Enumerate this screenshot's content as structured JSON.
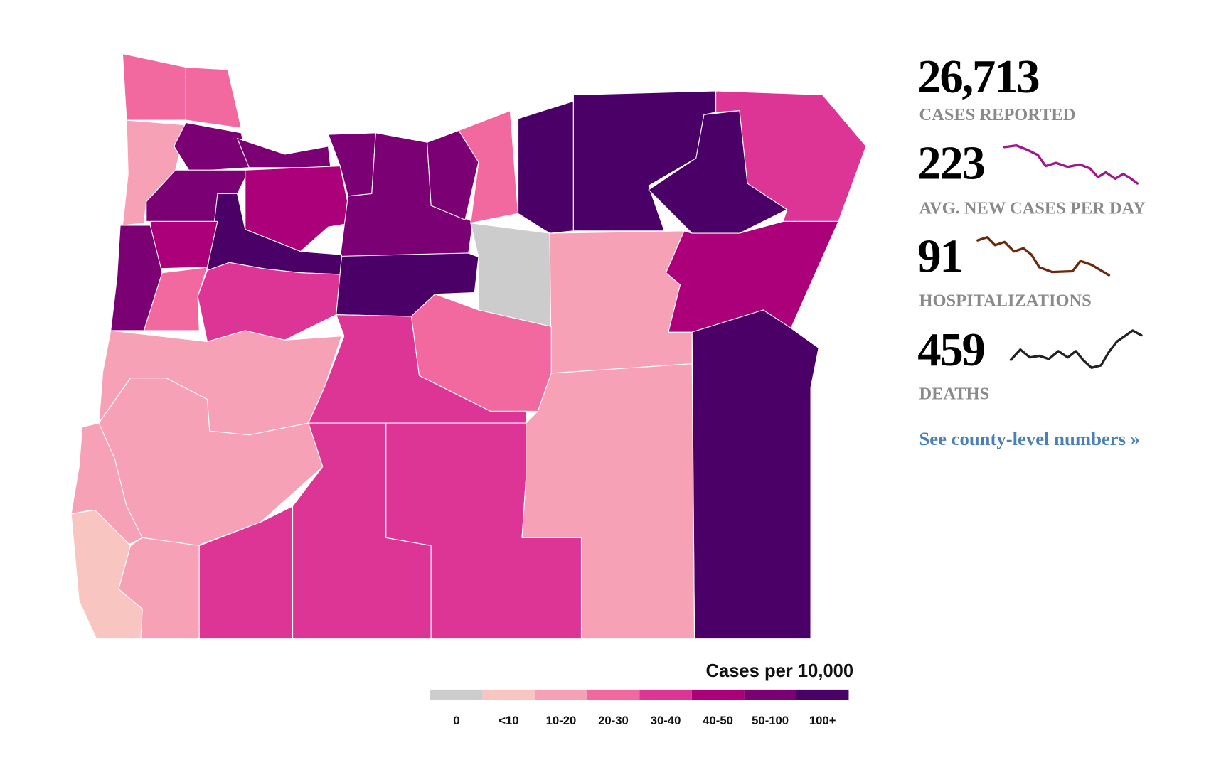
{
  "stats": [
    {
      "value": "26,713",
      "label": "CASES REPORTED"
    },
    {
      "value": "223",
      "label": "AVG. NEW CASES PER DAY"
    },
    {
      "value": "91",
      "label": "HOSPITALIZATIONS"
    },
    {
      "value": "459",
      "label": "DEATHS"
    }
  ],
  "link": "See county-level numbers »",
  "legend": {
    "title": "Cases per 10,000",
    "items": [
      {
        "label": "0",
        "color": "#cccccc"
      },
      {
        "label": "<10",
        "color": "#f9c5c0"
      },
      {
        "label": "10-20",
        "color": "#f7a1b6"
      },
      {
        "label": "20-30",
        "color": "#f2699f"
      },
      {
        "label": "30-40",
        "color": "#dc3596"
      },
      {
        "label": "40-50",
        "color": "#ab007a"
      },
      {
        "label": "50-100",
        "color": "#7b0074"
      },
      {
        "label": "100+",
        "color": "#4a0066"
      }
    ]
  }
}
